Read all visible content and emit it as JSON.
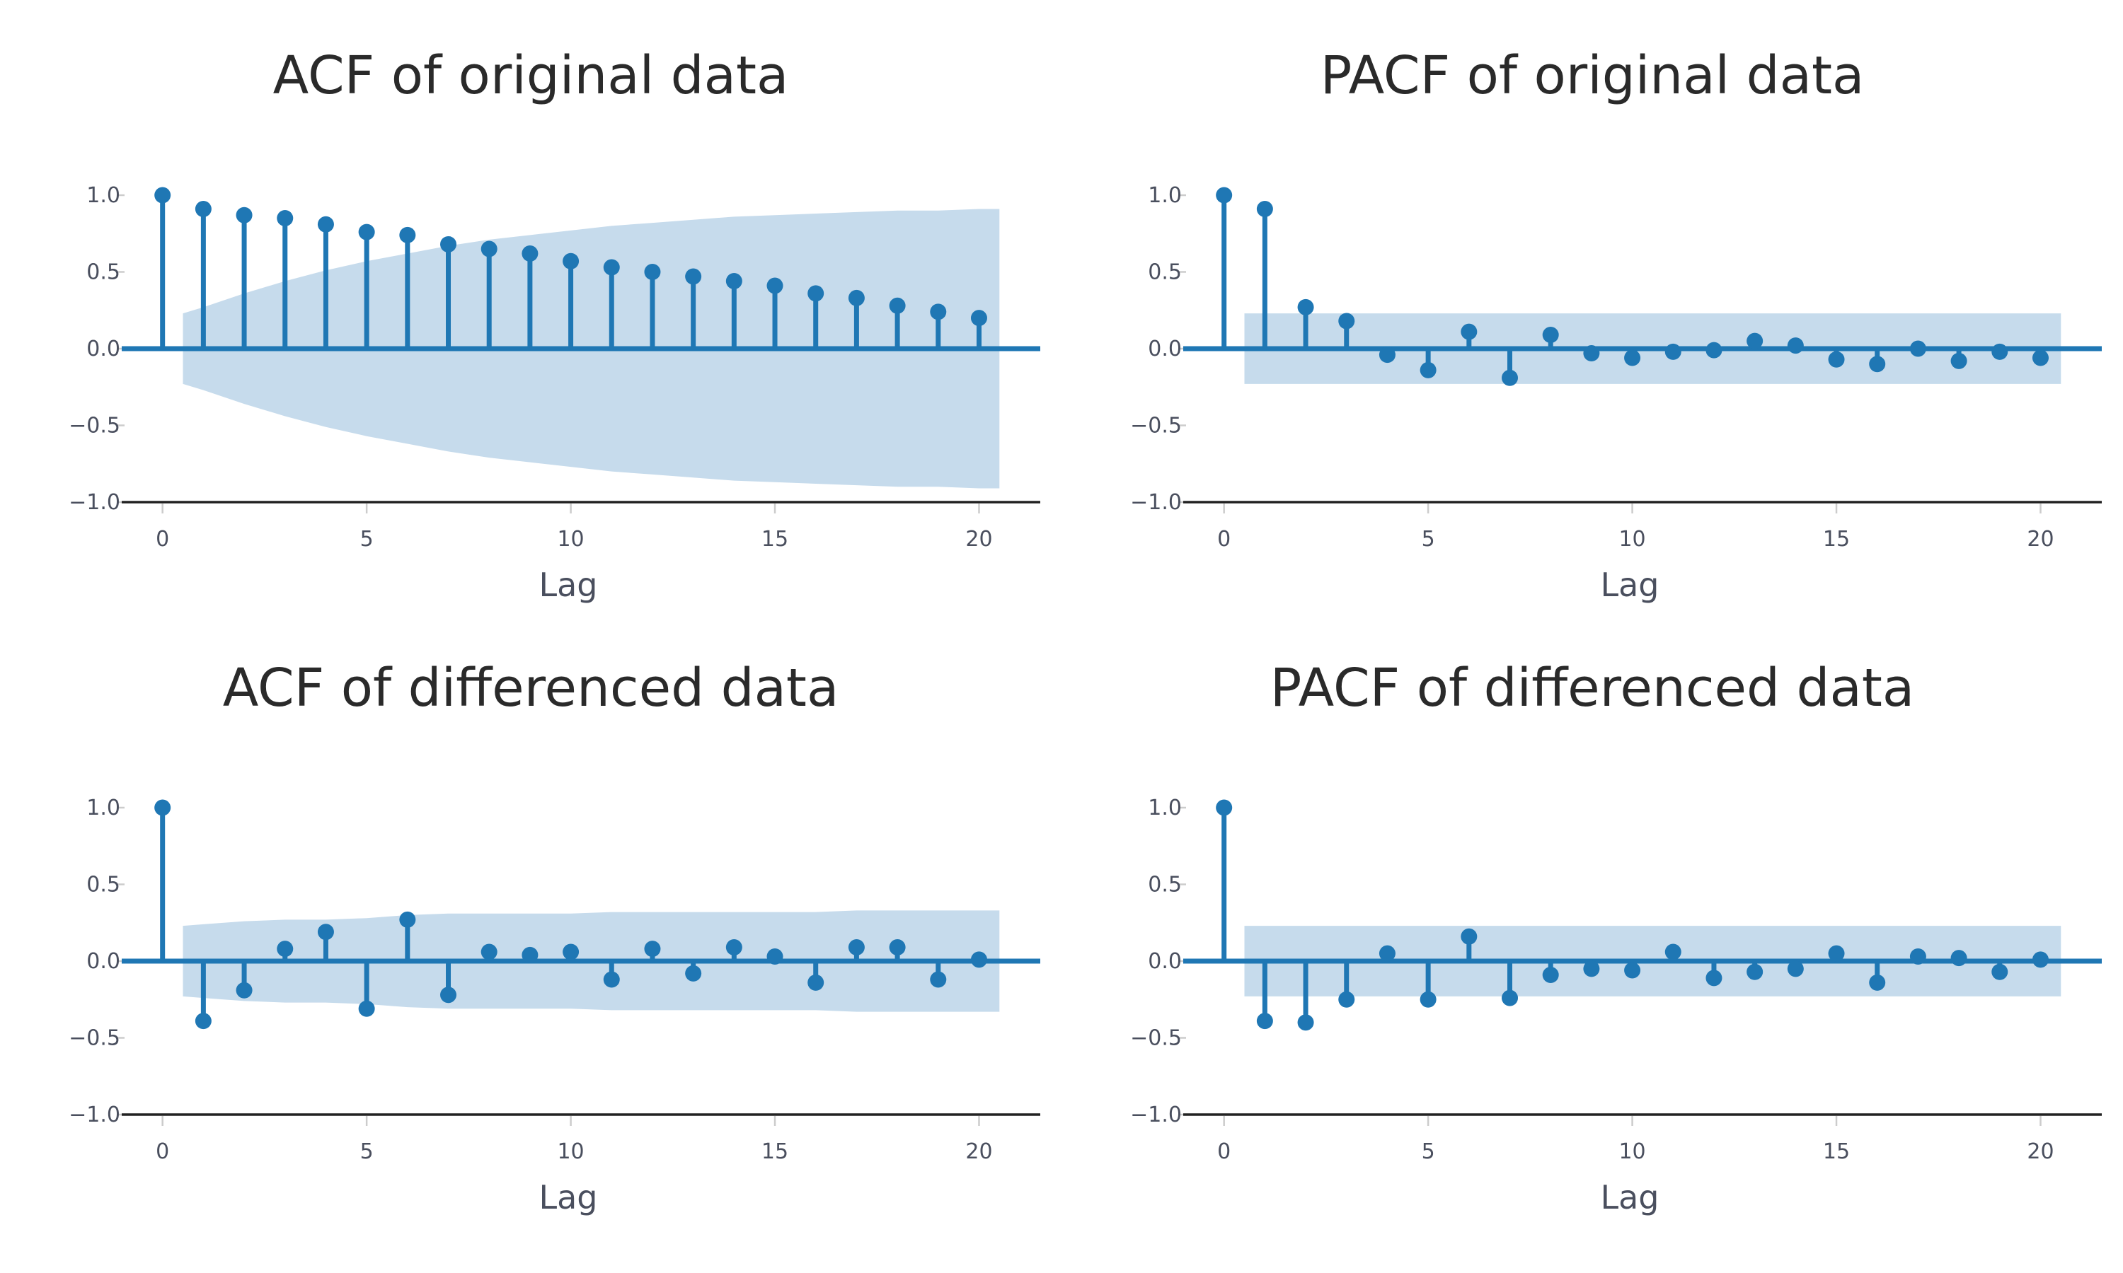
{
  "colors": {
    "marker": "#1f77b4",
    "conf_band": "#c6dbec",
    "axis_line": "#222222",
    "tick_mark": "#cccccc",
    "text": "#4a4f5e"
  },
  "chart_data": [
    {
      "type": "scatter",
      "style": "stem",
      "title": "ACF of original data",
      "xlabel": "Lag",
      "ylabel": "",
      "xlim": [
        -1,
        21.5
      ],
      "ylim": [
        -1,
        1.2
      ],
      "x_ticks": [
        0,
        5,
        10,
        15,
        20
      ],
      "y_ticks": [
        1.0,
        0.5,
        0.0,
        -0.5,
        -1.0
      ],
      "y_tick_labels": [
        "1.0",
        "0.5",
        "0.0",
        "−0.5",
        "−1.0"
      ],
      "x_tick_labels": [
        "0",
        "5",
        "10",
        "15",
        "20"
      ],
      "x": [
        0,
        1,
        2,
        3,
        4,
        5,
        6,
        7,
        8,
        9,
        10,
        11,
        12,
        13,
        14,
        15,
        16,
        17,
        18,
        19,
        20
      ],
      "values": [
        1.0,
        0.91,
        0.87,
        0.85,
        0.81,
        0.76,
        0.74,
        0.68,
        0.65,
        0.62,
        0.57,
        0.53,
        0.5,
        0.47,
        0.44,
        0.41,
        0.36,
        0.33,
        0.28,
        0.24,
        0.2
      ],
      "conf_band": {
        "x": [
          0.5,
          1,
          2,
          3,
          4,
          5,
          6,
          7,
          8,
          9,
          10,
          11,
          12,
          13,
          14,
          15,
          16,
          17,
          18,
          19,
          20,
          20.5
        ],
        "upper": [
          0.23,
          0.27,
          0.36,
          0.44,
          0.51,
          0.57,
          0.62,
          0.67,
          0.71,
          0.74,
          0.77,
          0.8,
          0.82,
          0.84,
          0.86,
          0.87,
          0.88,
          0.89,
          0.9,
          0.9,
          0.91,
          0.91
        ]
      }
    },
    {
      "type": "scatter",
      "style": "stem",
      "title": "PACF of original data",
      "xlabel": "Lag",
      "ylabel": "",
      "xlim": [
        -1,
        21.5
      ],
      "ylim": [
        -1,
        1.2
      ],
      "x_ticks": [
        0,
        5,
        10,
        15,
        20
      ],
      "y_ticks": [
        1.0,
        0.5,
        0.0,
        -0.5,
        -1.0
      ],
      "y_tick_labels": [
        "1.0",
        "0.5",
        "0.0",
        "−0.5",
        "−1.0"
      ],
      "x_tick_labels": [
        "0",
        "5",
        "10",
        "15",
        "20"
      ],
      "x": [
        0,
        1,
        2,
        3,
        4,
        5,
        6,
        7,
        8,
        9,
        10,
        11,
        12,
        13,
        14,
        15,
        16,
        17,
        18,
        19,
        20
      ],
      "values": [
        1.0,
        0.91,
        0.27,
        0.18,
        -0.04,
        -0.14,
        0.11,
        -0.19,
        0.09,
        -0.03,
        -0.06,
        -0.02,
        -0.01,
        0.05,
        0.02,
        -0.07,
        -0.1,
        0.0,
        -0.08,
        -0.02,
        -0.06
      ],
      "conf_band": {
        "x": [
          0.5,
          20.5
        ],
        "upper": [
          0.23,
          0.23
        ]
      }
    },
    {
      "type": "scatter",
      "style": "stem",
      "title": "ACF of differenced data",
      "xlabel": "Lag",
      "ylabel": "",
      "xlim": [
        -1,
        21.5
      ],
      "ylim": [
        -1,
        1.2
      ],
      "x_ticks": [
        0,
        5,
        10,
        15,
        20
      ],
      "y_ticks": [
        1.0,
        0.5,
        0.0,
        -0.5,
        -1.0
      ],
      "y_tick_labels": [
        "1.0",
        "0.5",
        "0.0",
        "−0.5",
        "−1.0"
      ],
      "x_tick_labels": [
        "0",
        "5",
        "10",
        "15",
        "20"
      ],
      "x": [
        0,
        1,
        2,
        3,
        4,
        5,
        6,
        7,
        8,
        9,
        10,
        11,
        12,
        13,
        14,
        15,
        16,
        17,
        18,
        19,
        20
      ],
      "values": [
        1.0,
        -0.39,
        -0.19,
        0.08,
        0.19,
        -0.31,
        0.27,
        -0.22,
        0.06,
        0.04,
        0.06,
        -0.12,
        0.08,
        -0.08,
        0.09,
        0.03,
        -0.14,
        0.09,
        0.09,
        -0.12,
        0.01
      ],
      "conf_band": {
        "x": [
          0.5,
          1,
          2,
          3,
          4,
          5,
          6,
          7,
          8,
          9,
          10,
          11,
          12,
          13,
          14,
          15,
          16,
          17,
          18,
          19,
          20,
          20.5
        ],
        "upper": [
          0.23,
          0.24,
          0.26,
          0.27,
          0.27,
          0.28,
          0.3,
          0.31,
          0.31,
          0.31,
          0.31,
          0.32,
          0.32,
          0.32,
          0.32,
          0.32,
          0.32,
          0.33,
          0.33,
          0.33,
          0.33,
          0.33
        ]
      }
    },
    {
      "type": "scatter",
      "style": "stem",
      "title": "PACF of differenced data",
      "xlabel": "Lag",
      "ylabel": "",
      "xlim": [
        -1,
        21.5
      ],
      "ylim": [
        -1,
        1.2
      ],
      "x_ticks": [
        0,
        5,
        10,
        15,
        20
      ],
      "y_ticks": [
        1.0,
        0.5,
        0.0,
        -0.5,
        -1.0
      ],
      "y_tick_labels": [
        "1.0",
        "0.5",
        "0.0",
        "−0.5",
        "−1.0"
      ],
      "x_tick_labels": [
        "0",
        "5",
        "10",
        "15",
        "20"
      ],
      "x": [
        0,
        1,
        2,
        3,
        4,
        5,
        6,
        7,
        8,
        9,
        10,
        11,
        12,
        13,
        14,
        15,
        16,
        17,
        18,
        19,
        20
      ],
      "values": [
        1.0,
        -0.39,
        -0.4,
        -0.25,
        0.05,
        -0.25,
        0.16,
        -0.24,
        -0.09,
        -0.05,
        -0.06,
        0.06,
        -0.11,
        -0.07,
        -0.05,
        0.05,
        -0.14,
        0.03,
        0.02,
        -0.07,
        0.01
      ],
      "conf_band": {
        "x": [
          0.5,
          20.5
        ],
        "upper": [
          0.23,
          0.23
        ]
      }
    }
  ]
}
